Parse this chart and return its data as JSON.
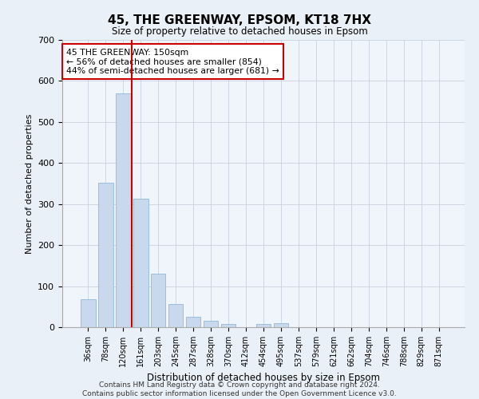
{
  "title": "45, THE GREENWAY, EPSOM, KT18 7HX",
  "subtitle": "Size of property relative to detached houses in Epsom",
  "xlabel": "Distribution of detached houses by size in Epsom",
  "ylabel": "Number of detached properties",
  "bar_labels": [
    "36sqm",
    "78sqm",
    "120sqm",
    "161sqm",
    "203sqm",
    "245sqm",
    "287sqm",
    "328sqm",
    "370sqm",
    "412sqm",
    "454sqm",
    "495sqm",
    "537sqm",
    "579sqm",
    "621sqm",
    "662sqm",
    "704sqm",
    "746sqm",
    "788sqm",
    "829sqm",
    "871sqm"
  ],
  "bar_values": [
    68,
    352,
    570,
    313,
    130,
    57,
    25,
    15,
    7,
    0,
    8,
    10,
    0,
    0,
    0,
    0,
    0,
    0,
    0,
    0,
    0
  ],
  "bar_color": "#c8d9ed",
  "bar_edge_color": "#8fb8d8",
  "vline_x": 2.5,
  "vline_color": "#cc0000",
  "annotation_text": "45 THE GREENWAY: 150sqm\n← 56% of detached houses are smaller (854)\n44% of semi-detached houses are larger (681) →",
  "annotation_box_color": "#ffffff",
  "annotation_box_edge": "#cc0000",
  "ylim": [
    0,
    700
  ],
  "yticks": [
    0,
    100,
    200,
    300,
    400,
    500,
    600,
    700
  ],
  "footer": "Contains HM Land Registry data © Crown copyright and database right 2024.\nContains public sector information licensed under the Open Government Licence v3.0.",
  "bg_color": "#eaf0f8",
  "plot_bg_color": "#f0f5fb"
}
